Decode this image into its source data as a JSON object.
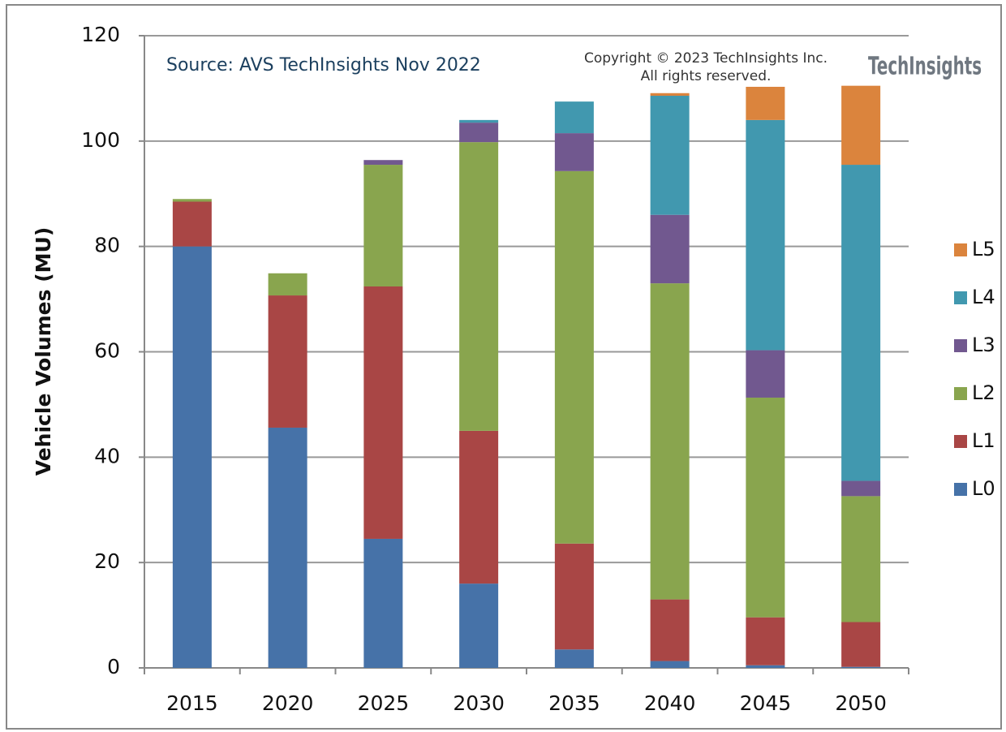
{
  "chart_data": {
    "type": "stacked-bar",
    "y_axis_label": "Vehicle Volumes (MU)",
    "annotations": {
      "source": "Source: AVS TechInsights Nov 2022",
      "copyright": [
        "Copyright © 2023 TechInsights Inc.",
        "All rights reserved."
      ],
      "logo": "TechInsights"
    },
    "categories": [
      "2015",
      "2020",
      "2025",
      "2030",
      "2035",
      "2040",
      "2045",
      "2050"
    ],
    "series": [
      {
        "name": "L0",
        "color": "#4672a8",
        "values": [
          80,
          45.6,
          24.5,
          16,
          3.5,
          1.3,
          0.5,
          0.2
        ]
      },
      {
        "name": "L1",
        "color": "#a94645",
        "values": [
          8.5,
          25.1,
          47.9,
          29,
          20.1,
          11.7,
          9.1,
          8.5
        ]
      },
      {
        "name": "L2",
        "color": "#89a54e",
        "values": [
          0.5,
          4.2,
          23.1,
          54.8,
          70.7,
          60,
          41.7,
          23.9
        ]
      },
      {
        "name": "L3",
        "color": "#71588f",
        "values": [
          0,
          0,
          0.9,
          3.7,
          7.2,
          13,
          9,
          2.9
        ]
      },
      {
        "name": "L4",
        "color": "#4198af",
        "values": [
          0,
          0,
          0,
          0.5,
          6,
          22.6,
          43.7,
          60
        ]
      },
      {
        "name": "L5",
        "color": "#db843d",
        "values": [
          0,
          0,
          0,
          0,
          0,
          0.5,
          6.3,
          15
        ]
      }
    ],
    "ylim": [
      0,
      120
    ],
    "yticks": [
      0,
      20,
      40,
      60,
      80,
      100,
      120
    ],
    "grid": true,
    "legend": "right"
  }
}
